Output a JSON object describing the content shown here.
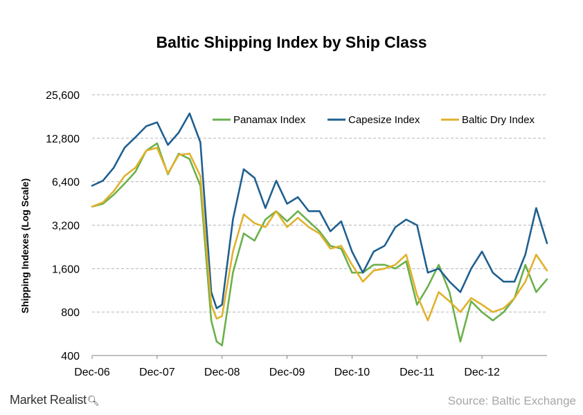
{
  "chart_data": {
    "type": "line",
    "title": "Baltic Shipping Index by Ship Class",
    "ylabel": "Shipping Indexes (Log Scale)",
    "xlabel": "",
    "y_scale": "log2",
    "ylim": [
      400,
      25600
    ],
    "yticks": [
      400,
      800,
      1600,
      3200,
      6400,
      12800,
      25600
    ],
    "ytick_labels": [
      "400",
      "800",
      "1,600",
      "3,200",
      "6,400",
      "12,800",
      "25,600"
    ],
    "xlim": [
      "2006-12",
      "2013-12"
    ],
    "x_tick_labels": [
      "Dec-06",
      "Dec-07",
      "Dec-08",
      "Dec-09",
      "Dec-10",
      "Dec-11",
      "Dec-12"
    ],
    "grid": "horizontal dashed",
    "legend_position": "top-right",
    "x": [
      "2006-12",
      "2007-02",
      "2007-04",
      "2007-06",
      "2007-08",
      "2007-10",
      "2007-12",
      "2008-02",
      "2008-04",
      "2008-06",
      "2008-08",
      "2008-10",
      "2008-11",
      "2008-12",
      "2009-02",
      "2009-04",
      "2009-06",
      "2009-08",
      "2009-10",
      "2009-12",
      "2010-02",
      "2010-04",
      "2010-06",
      "2010-08",
      "2010-10",
      "2010-12",
      "2011-02",
      "2011-04",
      "2011-06",
      "2011-08",
      "2011-10",
      "2011-12",
      "2012-02",
      "2012-04",
      "2012-06",
      "2012-08",
      "2012-10",
      "2012-12",
      "2013-02",
      "2013-04",
      "2013-06",
      "2013-08",
      "2013-10",
      "2013-12"
    ],
    "series": [
      {
        "name": "Panamax Index",
        "color": "#6ab04c",
        "values": [
          4300,
          4500,
          5200,
          6200,
          7500,
          10500,
          11800,
          7200,
          10000,
          9200,
          6000,
          700,
          500,
          470,
          1500,
          2800,
          2500,
          3500,
          4000,
          3400,
          4000,
          3400,
          2900,
          2300,
          2200,
          1500,
          1500,
          1700,
          1700,
          1600,
          1800,
          900,
          1200,
          1700,
          1100,
          500,
          950,
          800,
          700,
          800,
          1000,
          1700,
          1100,
          1350
        ]
      },
      {
        "name": "Capesize Index",
        "color": "#1f5f8f",
        "values": [
          6000,
          6500,
          8000,
          11000,
          13000,
          15500,
          16500,
          11500,
          14000,
          19000,
          12000,
          1100,
          850,
          900,
          3500,
          7800,
          6800,
          4200,
          6500,
          4500,
          5000,
          4000,
          4000,
          2900,
          3400,
          2100,
          1500,
          2100,
          2300,
          3100,
          3500,
          3200,
          1500,
          1600,
          1300,
          1100,
          1600,
          2100,
          1500,
          1300,
          1300,
          2000,
          4200,
          2400
        ]
      },
      {
        "name": "Baltic Dry Index",
        "color": "#e0b12b",
        "values": [
          4300,
          4600,
          5500,
          7000,
          8000,
          10500,
          11000,
          7300,
          9800,
          10000,
          7000,
          900,
          720,
          750,
          2100,
          3800,
          3300,
          3100,
          4000,
          3100,
          3600,
          3100,
          2800,
          2200,
          2300,
          1700,
          1300,
          1550,
          1600,
          1700,
          2000,
          1050,
          700,
          1100,
          950,
          800,
          1000,
          900,
          800,
          850,
          1000,
          1300,
          2000,
          1550
        ]
      }
    ]
  },
  "legend": [
    {
      "label": "Panamax Index",
      "color": "#6ab04c"
    },
    {
      "label": "Capesize Index",
      "color": "#1f5f8f"
    },
    {
      "label": "Baltic Dry Index",
      "color": "#e0b12b"
    }
  ],
  "brand": "Market Realist",
  "source": "Source: Baltic Exchange"
}
